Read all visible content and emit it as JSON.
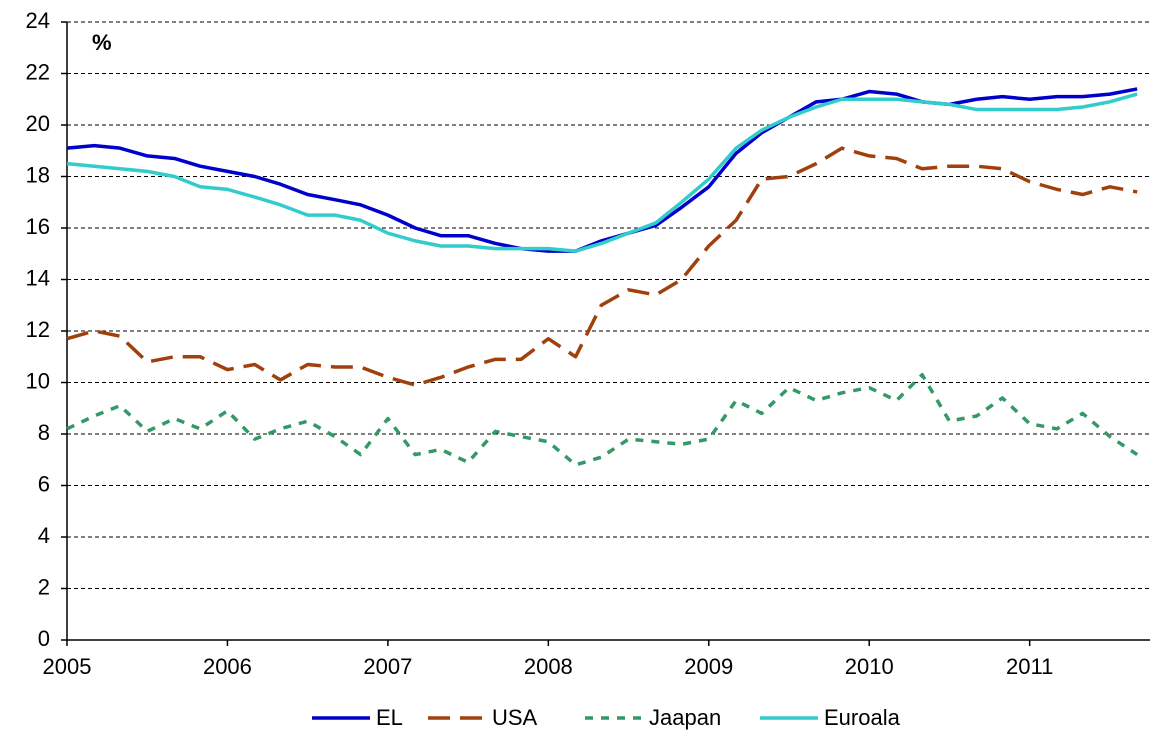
{
  "chart_data": {
    "type": "line",
    "annotation": "%",
    "x": [
      2005,
      2005.17,
      2005.33,
      2005.5,
      2005.67,
      2005.83,
      2006,
      2006.17,
      2006.33,
      2006.5,
      2006.67,
      2006.83,
      2007,
      2007.17,
      2007.33,
      2007.5,
      2007.67,
      2007.83,
      2008,
      2008.17,
      2008.33,
      2008.5,
      2008.67,
      2008.83,
      2009,
      2009.17,
      2009.33,
      2009.5,
      2009.67,
      2009.83,
      2010,
      2010.17,
      2010.33,
      2010.5,
      2010.67,
      2010.83,
      2011,
      2011.17,
      2011.33,
      2011.5,
      2011.67
    ],
    "series": [
      {
        "name": "EL",
        "color": "#0000cc",
        "dash": "solid",
        "values": [
          19.1,
          19.2,
          19.1,
          18.8,
          18.7,
          18.4,
          18.2,
          18.0,
          17.7,
          17.3,
          17.1,
          16.9,
          16.5,
          16.0,
          15.7,
          15.7,
          15.4,
          15.2,
          15.1,
          15.1,
          15.5,
          15.8,
          16.1,
          16.8,
          17.6,
          18.9,
          19.7,
          20.3,
          20.9,
          21.0,
          21.3,
          21.2,
          20.9,
          20.8,
          21.0,
          21.1,
          21.0,
          21.1,
          21.1,
          21.2,
          21.4
        ]
      },
      {
        "name": "USA",
        "color": "#a0410d",
        "dash": "dashed",
        "values": [
          11.7,
          12.0,
          11.8,
          10.8,
          11.0,
          11.0,
          10.5,
          10.7,
          10.1,
          10.7,
          10.6,
          10.6,
          10.2,
          9.9,
          10.2,
          10.6,
          10.9,
          10.9,
          11.7,
          11.0,
          13.0,
          13.6,
          13.4,
          14.0,
          15.3,
          16.3,
          17.9,
          18.0,
          18.5,
          19.1,
          18.8,
          18.7,
          18.3,
          18.4,
          18.4,
          18.3,
          17.8,
          17.5,
          17.3,
          17.6,
          17.4
        ]
      },
      {
        "name": "Jaapan",
        "color": "#339966",
        "dash": "dotted",
        "values": [
          8.2,
          8.7,
          9.1,
          8.1,
          8.6,
          8.2,
          8.9,
          7.8,
          8.2,
          8.5,
          7.9,
          7.2,
          8.6,
          7.2,
          7.4,
          6.9,
          8.1,
          7.9,
          7.7,
          6.8,
          7.1,
          7.8,
          7.7,
          7.6,
          7.8,
          9.3,
          8.8,
          9.8,
          9.3,
          9.6,
          9.8,
          9.3,
          10.3,
          8.5,
          8.7,
          9.4,
          8.4,
          8.2,
          8.8,
          7.9,
          7.2
        ]
      },
      {
        "name": "Euroala",
        "color": "#33cccc",
        "dash": "solid",
        "values": [
          18.5,
          18.4,
          18.3,
          18.2,
          18.0,
          17.6,
          17.5,
          17.2,
          16.9,
          16.5,
          16.5,
          16.3,
          15.8,
          15.5,
          15.3,
          15.3,
          15.2,
          15.2,
          15.2,
          15.1,
          15.4,
          15.8,
          16.2,
          17.0,
          17.9,
          19.1,
          19.8,
          20.3,
          20.7,
          21.0,
          21.0,
          21.0,
          20.9,
          20.8,
          20.6,
          20.6,
          20.6,
          20.6,
          20.7,
          20.9,
          21.2
        ]
      }
    ],
    "xlim": [
      2005,
      2011.75
    ],
    "xticks": [
      2005,
      2006,
      2007,
      2008,
      2009,
      2010,
      2011
    ],
    "ylim": [
      0,
      24
    ],
    "yticks": [
      0,
      2,
      4,
      6,
      8,
      10,
      12,
      14,
      16,
      18,
      20,
      22,
      24
    ],
    "grid": true,
    "legend": "bottom"
  }
}
